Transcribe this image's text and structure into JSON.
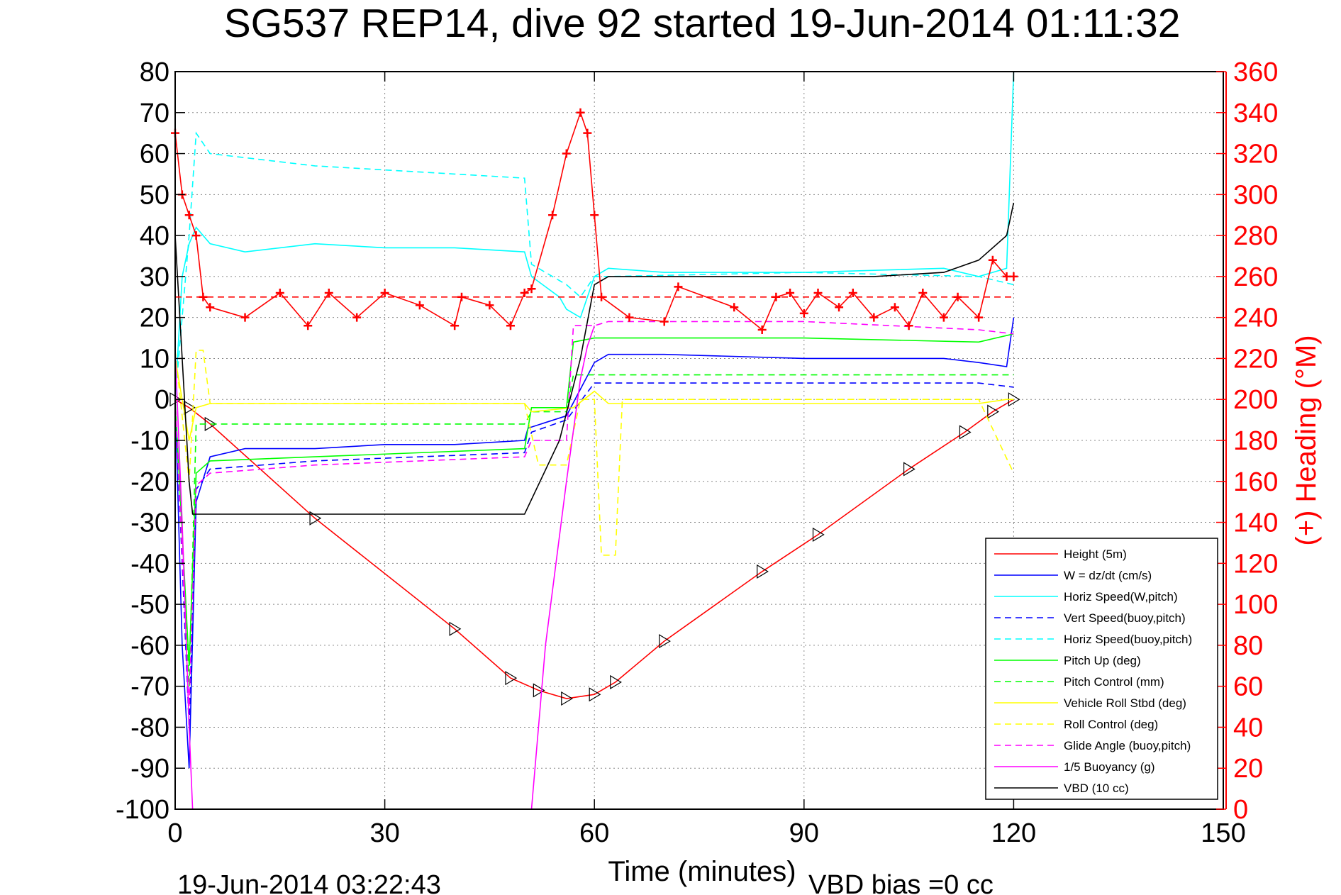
{
  "chart_data": {
    "type": "line",
    "title": "SG537 REP14, dive 92 started 19-Jun-2014 01:11:32",
    "xlabel": "Time (minutes)",
    "ylabel_right": "(+) Heading (°M)",
    "footer_date": "19-Jun-2014 03:22:43",
    "footer_vbd": "VBD bias =0 cc",
    "xlim": [
      0,
      150
    ],
    "ylim": [
      -100,
      80
    ],
    "ylim_right": [
      0,
      360
    ],
    "x_ticks": [
      0,
      30,
      60,
      90,
      120,
      150
    ],
    "y_ticks": [
      -100,
      -90,
      -80,
      -70,
      -60,
      -50,
      -40,
      -30,
      -20,
      -10,
      0,
      10,
      20,
      30,
      40,
      50,
      60,
      70,
      80
    ],
    "y_right_ticks": [
      0,
      20,
      40,
      60,
      80,
      100,
      120,
      140,
      160,
      180,
      200,
      220,
      240,
      260,
      280,
      300,
      320,
      340,
      360
    ],
    "grid": true,
    "legend_position": "bottom-right",
    "colors": {
      "height": "#ff0000",
      "w": "#0000ff",
      "horiz_speed": "#00ffff",
      "pitch": "#00ff00",
      "roll": "#ffff00",
      "glide": "#ff00ff",
      "vbd": "#000000",
      "heading": "#ff0000"
    },
    "series": [
      {
        "name": "Height (5m)",
        "color": "#ff0000",
        "dash": false,
        "x": [
          0,
          2,
          5,
          20,
          40,
          48,
          52,
          56,
          60,
          63,
          70,
          84,
          92,
          105,
          113,
          117,
          120
        ],
        "y": [
          0,
          -2,
          -6,
          -29,
          -56,
          -68,
          -71,
          -73,
          -72,
          -69,
          -59,
          -42,
          -33,
          -17,
          -8,
          -3,
          0
        ]
      },
      {
        "name": "W = dz/dt (cm/s)",
        "color": "#0000ff",
        "dash": false,
        "x": [
          0,
          1,
          2,
          3,
          5,
          10,
          20,
          30,
          40,
          50,
          50.5,
          56,
          60,
          62,
          70,
          90,
          110,
          115,
          119,
          120
        ],
        "y": [
          0,
          -60,
          -90,
          -25,
          -14,
          -12,
          -12,
          -11,
          -11,
          -10,
          -7,
          -4,
          9,
          11,
          11,
          10,
          10,
          9,
          8,
          20
        ]
      },
      {
        "name": "Horiz Speed(W,pitch)",
        "color": "#00ffff",
        "dash": false,
        "x": [
          0,
          1,
          2,
          3,
          5,
          10,
          20,
          30,
          40,
          50,
          51,
          55,
          56,
          58,
          60,
          62,
          70,
          90,
          110,
          115,
          119,
          120
        ],
        "y": [
          0,
          30,
          38,
          42,
          38,
          36,
          38,
          37,
          37,
          36,
          30,
          25,
          22,
          20,
          30,
          32,
          31,
          31,
          32,
          30,
          32,
          80
        ]
      },
      {
        "name": "Vert Speed(buoy,pitch)",
        "color": "#0000ff",
        "dash": true,
        "x": [
          0,
          2,
          3,
          5,
          20,
          50,
          51,
          56,
          60,
          62,
          90,
          115,
          120
        ],
        "y": [
          0,
          -80,
          -22,
          -17,
          -15,
          -13,
          -8,
          -5,
          4,
          4,
          4,
          4,
          3
        ]
      },
      {
        "name": "Horiz Speed(buoy,pitch)",
        "color": "#00ffff",
        "dash": true,
        "x": [
          0,
          2,
          3,
          5,
          20,
          40,
          50,
          51,
          56,
          58,
          60,
          62,
          90,
          115,
          120
        ],
        "y": [
          0,
          40,
          65,
          60,
          57,
          55,
          54,
          33,
          28,
          25,
          30,
          30,
          31,
          30,
          28
        ]
      },
      {
        "name": "Pitch Up (deg)",
        "color": "#00ff00",
        "dash": false,
        "x": [
          0,
          2,
          3,
          5,
          20,
          50,
          51,
          56,
          57,
          60,
          62,
          90,
          115,
          120
        ],
        "y": [
          0,
          -65,
          -18,
          -15,
          -14,
          -12,
          -2,
          -2,
          14,
          15,
          15,
          15,
          14,
          16
        ]
      },
      {
        "name": "Pitch Control (mm)",
        "color": "#00ff00",
        "dash": true,
        "x": [
          0,
          2,
          3,
          5,
          50,
          51,
          56,
          57,
          60,
          62,
          115,
          120
        ],
        "y": [
          0,
          -70,
          -6,
          -6,
          -6,
          -3,
          -3,
          6,
          6,
          6,
          6,
          6
        ]
      },
      {
        "name": "Vehicle Roll Stbd (deg)",
        "color": "#ffff00",
        "dash": false,
        "x": [
          0,
          2,
          3,
          5,
          20,
          50,
          51,
          57,
          60,
          62,
          70,
          90,
          115,
          119,
          120
        ],
        "y": [
          10,
          -10,
          -2,
          -1,
          -1,
          -1,
          -3,
          -2,
          2,
          -1,
          -1,
          -1,
          -1,
          0,
          0
        ]
      },
      {
        "name": "Roll Control (deg)",
        "color": "#ffff00",
        "dash": true,
        "x": [
          0,
          2,
          3,
          4,
          5,
          6,
          20,
          50,
          52,
          56,
          58,
          60,
          61,
          63,
          64,
          70,
          90,
          115,
          120
        ],
        "y": [
          12,
          -20,
          12,
          12,
          -1,
          -1,
          -1,
          -1,
          -16,
          -16,
          0,
          0,
          -38,
          -38,
          0,
          0,
          0,
          0,
          -18
        ]
      },
      {
        "name": "Glide Angle (buoy,pitch)",
        "color": "#ff00ff",
        "dash": true,
        "x": [
          0,
          2,
          3,
          5,
          20,
          50,
          51,
          56,
          57,
          60,
          62,
          90,
          115,
          120
        ],
        "y": [
          0,
          -75,
          -21,
          -18,
          -16,
          -14,
          -10,
          -10,
          18,
          18,
          19,
          19,
          17,
          16
        ]
      },
      {
        "name": "1/5 Buoyancy (g)",
        "color": "#ff00ff",
        "dash": false,
        "x": [
          0,
          1,
          2,
          2.5,
          51,
          53,
          56,
          58,
          59,
          60
        ],
        "y": [
          12,
          -30,
          -80,
          -100,
          -100,
          -60,
          -20,
          5,
          13,
          18
        ]
      },
      {
        "name": "VBD (10 cc)",
        "color": "#000000",
        "dash": false,
        "x": [
          0,
          1,
          2,
          2.5,
          5,
          20,
          40,
          50,
          55,
          58,
          60,
          62,
          70,
          90,
          100,
          110,
          115,
          119,
          120
        ],
        "y": [
          40,
          10,
          -20,
          -28,
          -28,
          -28,
          -28,
          -28,
          -10,
          10,
          28,
          30,
          30,
          30,
          30,
          31,
          34,
          40,
          48
        ]
      },
      {
        "name": "Heading",
        "axis": "right",
        "color": "#ff0000",
        "marker": "+",
        "x": [
          0,
          1,
          2,
          3,
          4,
          5,
          10,
          15,
          19,
          22,
          26,
          30,
          35,
          40,
          41,
          45,
          48,
          50,
          51,
          54,
          56,
          58,
          59,
          60,
          61,
          65,
          70,
          72,
          80,
          84,
          86,
          88,
          90,
          92,
          95,
          97,
          100,
          103,
          105,
          107,
          110,
          112,
          115,
          117,
          119,
          120
        ],
        "y": [
          330,
          300,
          290,
          280,
          250,
          245,
          240,
          252,
          236,
          252,
          240,
          252,
          246,
          236,
          250,
          246,
          236,
          252,
          254,
          290,
          320,
          340,
          330,
          290,
          250,
          240,
          238,
          255,
          245,
          234,
          250,
          252,
          242,
          252,
          245,
          252,
          240,
          245,
          236,
          252,
          240,
          250,
          240,
          268,
          260,
          260
        ]
      },
      {
        "name": "Heading target",
        "axis": "right",
        "color": "#ff0000",
        "dash": true,
        "x": [
          0,
          120
        ],
        "y": [
          250,
          250
        ]
      }
    ]
  }
}
